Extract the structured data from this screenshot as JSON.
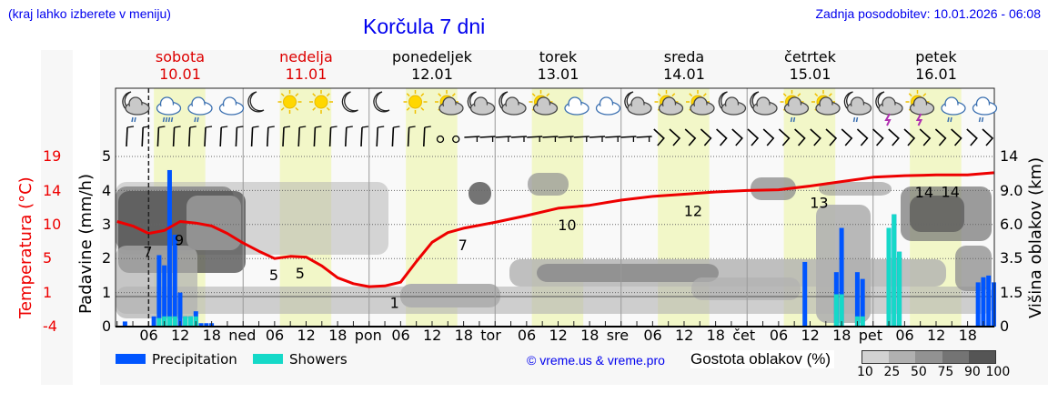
{
  "header": {
    "menu_hint": "(kraj lahko izberete v meniju)",
    "title": "Korčula 7 dni",
    "last_update": "Zadnja posodobitev: 10.01.2026 - 06:08"
  },
  "days": [
    {
      "name": "sobota",
      "date": "10.01",
      "weekend": true
    },
    {
      "name": "nedelja",
      "date": "11.01",
      "weekend": true
    },
    {
      "name": "ponedeljek",
      "date": "12.01",
      "weekend": false
    },
    {
      "name": "torek",
      "date": "13.01",
      "weekend": false
    },
    {
      "name": "sreda",
      "date": "14.01",
      "weekend": false
    },
    {
      "name": "četrtek",
      "date": "15.01",
      "weekend": false
    },
    {
      "name": "petek",
      "date": "16.01",
      "weekend": false
    }
  ],
  "axes": {
    "temp_label": "Temperatura (°C)",
    "temp_ticks": [
      "19",
      "14",
      "10",
      "5",
      "1",
      "-4"
    ],
    "precip_label": "Padavine (mm/h)",
    "precip_ticks": [
      "5",
      "4",
      "3",
      "2",
      "1",
      "0"
    ],
    "cloud_label": "Višina oblakov (km)",
    "cloud_ticks": [
      "14",
      "9.0",
      "6.0",
      "3.5",
      "1.5",
      "0"
    ],
    "x_ticks": [
      "06",
      "12",
      "18",
      "ned",
      "06",
      "12",
      "18",
      "pon",
      "06",
      "12",
      "18",
      "tor",
      "06",
      "12",
      "18",
      "sre",
      "06",
      "12",
      "18",
      "čet",
      "06",
      "12",
      "18",
      "pet",
      "06",
      "12",
      "18"
    ]
  },
  "legend": {
    "precipitation": "Precipitation",
    "showers": "Showers",
    "precip_color": "#0055ff",
    "showers_color": "#15d9c8",
    "copyright": "© vreme.us & vreme.pro",
    "density_label": "Gostota oblakov (%)",
    "density_ticks": [
      "10",
      "25",
      "50",
      "75",
      "90",
      "100"
    ],
    "density_colors": [
      "#d2d2d2",
      "#b0b0b0",
      "#929292",
      "#747474",
      "#555555"
    ]
  },
  "weather_icons": [
    "night-cloud-rain",
    "cloud-rain-heavy",
    "cloud-rain",
    "cloud",
    "moon",
    "sun",
    "sun",
    "moon",
    "moon",
    "sun",
    "sun-cloud",
    "night-cloud",
    "night-cloud",
    "sun-cloud",
    "cloud",
    "cloud",
    "night-cloud",
    "sun-cloud",
    "sun-cloud",
    "night-cloud",
    "night-cloud",
    "sun-cloud-rain",
    "sun-cloud",
    "night-cloud-rain",
    "night-cloud-thunder",
    "sun-cloud-thunder",
    "cloud-rain",
    "cloud-rain"
  ],
  "chart_data": {
    "type": "line+bar",
    "title": "Korčula 7 dni",
    "xlabel": "",
    "ylabel": "Padavine (mm/h)",
    "ylim": [
      0,
      5
    ],
    "secondary_axes": {
      "temperature": {
        "label": "Temperatura (°C)",
        "ticks": [
          -4,
          1,
          5,
          10,
          14,
          19
        ]
      },
      "cloud_height": {
        "label": "Višina oblakov (km)",
        "ticks": [
          0,
          1.5,
          3.5,
          6.0,
          9.0,
          14
        ]
      }
    },
    "grid": true,
    "now_marker": "10.01 06:00",
    "temperature_series": {
      "name": "Temperatura",
      "color": "#ee0000",
      "x_hours": [
        0,
        3,
        6,
        9,
        12,
        15,
        18,
        21,
        24,
        27,
        30,
        33,
        36,
        39,
        42,
        45,
        48,
        51,
        54,
        57,
        60,
        63,
        66,
        72,
        78,
        84,
        90,
        96,
        102,
        108,
        114,
        120,
        126,
        132,
        138,
        144,
        150,
        156,
        162,
        167
      ],
      "values_c": [
        10.2,
        9.6,
        8.6,
        9.0,
        10.2,
        10.0,
        9.6,
        8.6,
        7.3,
        6.2,
        5.2,
        5.5,
        5.4,
        4.2,
        2.6,
        1.8,
        1.4,
        1.5,
        2.0,
        4.8,
        7.4,
        8.7,
        9.3,
        10.1,
        11.0,
        12.0,
        12.4,
        13.1,
        13.6,
        13.9,
        14.2,
        14.4,
        14.5,
        15.0,
        15.6,
        16.2,
        16.4,
        16.5,
        16.5,
        16.8
      ]
    },
    "temperature_labels": [
      {
        "hour": 6,
        "text": "7"
      },
      {
        "hour": 12,
        "text": "9"
      },
      {
        "hour": 30,
        "text": "5"
      },
      {
        "hour": 35,
        "text": "5"
      },
      {
        "hour": 53,
        "text": "1"
      },
      {
        "hour": 66,
        "text": "7"
      },
      {
        "hour": 85,
        "text": "10"
      },
      {
        "hour": 109,
        "text": "12"
      },
      {
        "hour": 133,
        "text": "13"
      },
      {
        "hour": 153,
        "text": "14"
      },
      {
        "hour": 158,
        "text": "14"
      }
    ],
    "precipitation_bars": [
      {
        "hour": 1.5,
        "total": 0.15,
        "showers": 0
      },
      {
        "hour": 7,
        "total": 0.3,
        "showers": 0
      },
      {
        "hour": 8,
        "total": 2.1,
        "showers": 0.25
      },
      {
        "hour": 9,
        "total": 1.8,
        "showers": 0.3
      },
      {
        "hour": 10,
        "total": 4.6,
        "showers": 0.3
      },
      {
        "hour": 11,
        "total": 2.7,
        "showers": 0.3
      },
      {
        "hour": 12,
        "total": 1.0,
        "showers": 0
      },
      {
        "hour": 13,
        "total": 0.3,
        "showers": 0.3
      },
      {
        "hour": 14,
        "total": 0.3,
        "showers": 0.3
      },
      {
        "hour": 15,
        "total": 0.45,
        "showers": 0.3
      },
      {
        "hour": 16,
        "total": 0.1,
        "showers": 0
      },
      {
        "hour": 17,
        "total": 0.1,
        "showers": 0
      },
      {
        "hour": 18,
        "total": 0.1,
        "showers": 0
      },
      {
        "hour": 131,
        "total": 1.9,
        "showers": 0
      },
      {
        "hour": 137,
        "total": 1.6,
        "showers": 0.95
      },
      {
        "hour": 138,
        "total": 2.9,
        "showers": 0.95
      },
      {
        "hour": 141,
        "total": 1.6,
        "showers": 0.3
      },
      {
        "hour": 142,
        "total": 1.4,
        "showers": 0.3
      },
      {
        "hour": 147,
        "total": 2.9,
        "showers": 2.9
      },
      {
        "hour": 148,
        "total": 3.3,
        "showers": 3.3
      },
      {
        "hour": 149,
        "total": 2.2,
        "showers": 2.2
      },
      {
        "hour": 164,
        "total": 1.3,
        "showers": 0
      },
      {
        "hour": 165,
        "total": 1.45,
        "showers": 0
      },
      {
        "hour": 166,
        "total": 1.5,
        "showers": 0
      },
      {
        "hour": 167,
        "total": 1.3,
        "showers": 0
      }
    ]
  }
}
